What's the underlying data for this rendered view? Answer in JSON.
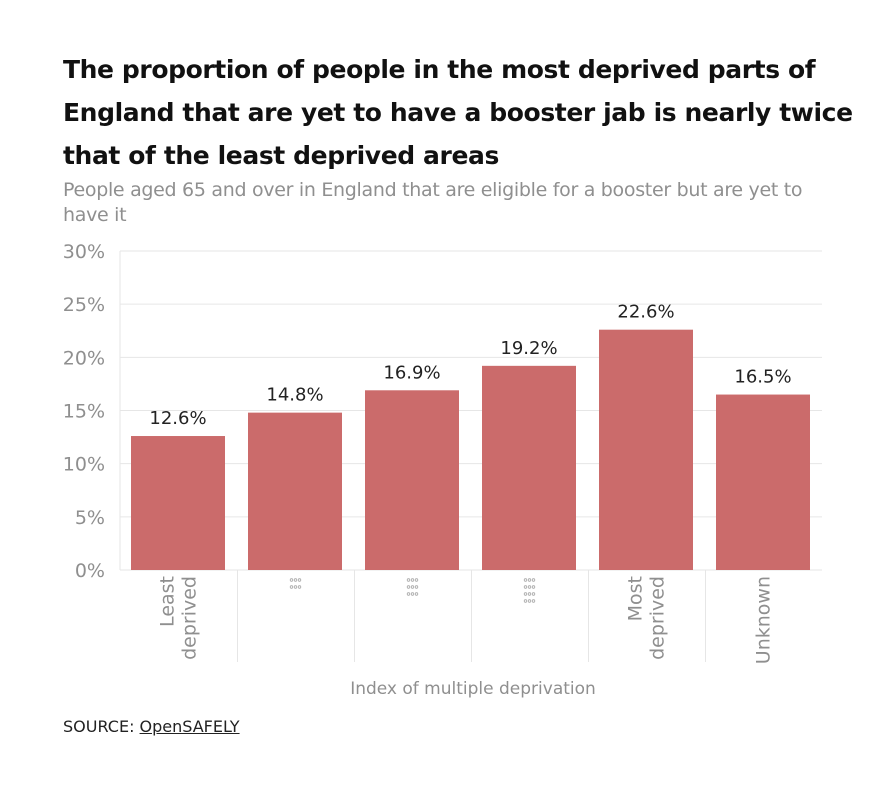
{
  "title": "The proportion of people in the most deprived parts of England that are yet to have a booster jab is nearly twice that of the least deprived areas",
  "subtitle": "People aged 65 and over in England that are eligible for a booster but are yet to have it",
  "source": {
    "label": "SOURCE: ",
    "link_text": "OpenSAFELY"
  },
  "colors": {
    "bar": "#cb6b6b",
    "grid": "#e6e6e6",
    "tick_text": "#8f8f8f",
    "value_text": "#222222",
    "axis_title": "#8f8f8f"
  },
  "chart_data": {
    "type": "bar",
    "title": "The proportion of people in the most deprived parts of England that are yet to have a booster jab is nearly twice that of the least deprived areas",
    "subtitle": "People aged 65 and over in England that are eligible for a booster but are yet to have it",
    "xlabel": "Index of multiple deprivation",
    "ylabel": "",
    "ylim": [
      0,
      30
    ],
    "yticks": [
      0,
      5,
      10,
      15,
      20,
      25,
      30
    ],
    "ytick_labels": [
      "0%",
      "5%",
      "10%",
      "15%",
      "20%",
      "25%",
      "30%"
    ],
    "grid": true,
    "categories": [
      {
        "lines": [
          "Least",
          "deprived"
        ],
        "dots": 0
      },
      {
        "lines": [],
        "dots": 2
      },
      {
        "lines": [],
        "dots": 3
      },
      {
        "lines": [],
        "dots": 4
      },
      {
        "lines": [
          "Most",
          "deprived"
        ],
        "dots": 0
      },
      {
        "lines": [
          "Unknown"
        ],
        "dots": 0
      }
    ],
    "values": [
      12.6,
      14.8,
      16.9,
      19.2,
      22.6,
      16.5
    ],
    "value_labels": [
      "12.6%",
      "14.8%",
      "16.9%",
      "19.2%",
      "22.6%",
      "16.5%"
    ]
  }
}
